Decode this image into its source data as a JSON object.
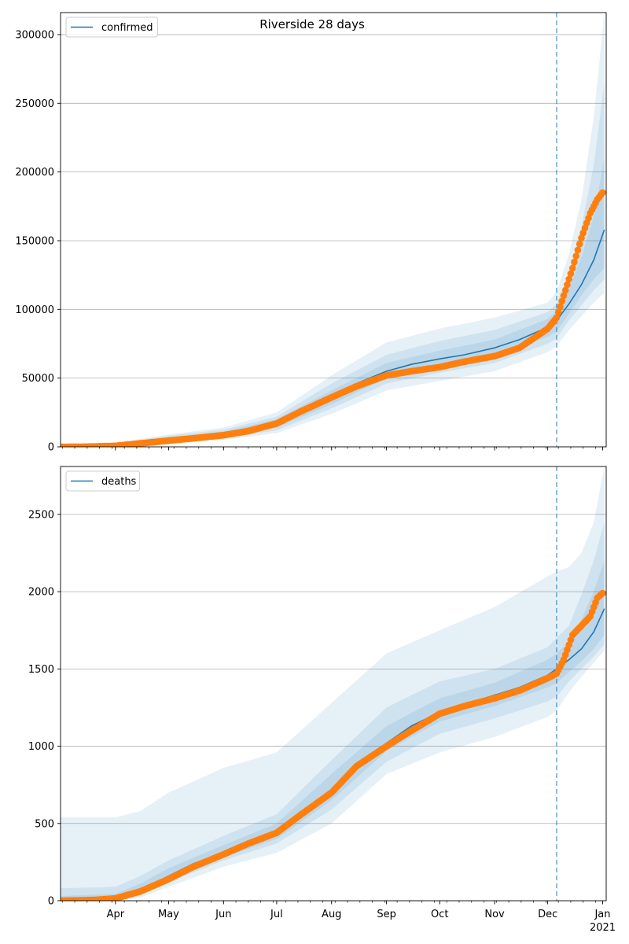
{
  "figure": {
    "title": "Riverside 28 days"
  },
  "chart_data": [
    {
      "type": "line",
      "title": "Riverside 28 days",
      "xlabel": "",
      "ylabel": "",
      "legend": "top-left",
      "grid": "y",
      "ylim": [
        0,
        316000
      ],
      "y_ticks": [
        0,
        50000,
        100000,
        150000,
        200000,
        250000,
        300000
      ],
      "y_tick_labels": [
        "0",
        "50000",
        "100000",
        "150000",
        "200000",
        "250000",
        "300000"
      ],
      "forecast_start": "2020-12-06",
      "model": {
        "name": "confirmed",
        "color": "#1f77b4",
        "points": [
          [
            "2020-03-01",
            0
          ],
          [
            "2020-03-20",
            300
          ],
          [
            "2020-04-01",
            1500
          ],
          [
            "2020-04-15",
            3500
          ],
          [
            "2020-05-01",
            5500
          ],
          [
            "2020-05-15",
            7000
          ],
          [
            "2020-06-01",
            9000
          ],
          [
            "2020-06-15",
            12000
          ],
          [
            "2020-07-01",
            17000
          ],
          [
            "2020-07-15",
            25000
          ],
          [
            "2020-08-01",
            36000
          ],
          [
            "2020-08-15",
            46000
          ],
          [
            "2020-09-01",
            55000
          ],
          [
            "2020-09-15",
            60000
          ],
          [
            "2020-10-01",
            64000
          ],
          [
            "2020-10-15",
            67000
          ],
          [
            "2020-11-01",
            72000
          ],
          [
            "2020-11-15",
            78000
          ],
          [
            "2020-12-01",
            87000
          ],
          [
            "2020-12-06",
            92000
          ],
          [
            "2020-12-13",
            104000
          ],
          [
            "2020-12-20",
            118000
          ],
          [
            "2020-12-27",
            136000
          ],
          [
            "2021-01-02",
            158000
          ]
        ],
        "bands": [
          {
            "opacity": 0.11,
            "points": [
              [
                "2020-03-01",
                0,
                0
              ],
              [
                "2020-04-01",
                0,
                3000
              ],
              [
                "2020-05-01",
                2500,
                9000
              ],
              [
                "2020-06-01",
                5000,
                14000
              ],
              [
                "2020-07-01",
                10000,
                25000
              ],
              [
                "2020-08-01",
                24000,
                52000
              ],
              [
                "2020-09-01",
                41000,
                76000
              ],
              [
                "2020-10-01",
                48000,
                86000
              ],
              [
                "2020-11-01",
                55000,
                94000
              ],
              [
                "2020-12-01",
                69000,
                105000
              ],
              [
                "2020-12-06",
                73000,
                113000
              ],
              [
                "2020-12-13",
                85000,
                140000
              ],
              [
                "2020-12-20",
                95000,
                180000
              ],
              [
                "2020-12-27",
                105000,
                240000
              ],
              [
                "2021-01-02",
                112000,
                316000
              ]
            ]
          },
          {
            "opacity": 0.11,
            "points": [
              [
                "2020-03-01",
                0,
                0
              ],
              [
                "2020-04-01",
                300,
                2500
              ],
              [
                "2020-05-01",
                3500,
                8000
              ],
              [
                "2020-06-01",
                6000,
                12500
              ],
              [
                "2020-07-01",
                12000,
                22000
              ],
              [
                "2020-08-01",
                28000,
                46000
              ],
              [
                "2020-09-01",
                46000,
                67000
              ],
              [
                "2020-10-01",
                54000,
                77000
              ],
              [
                "2020-11-01",
                61000,
                85000
              ],
              [
                "2020-12-01",
                75000,
                98000
              ],
              [
                "2020-12-06",
                79000,
                104000
              ],
              [
                "2020-12-13",
                92000,
                127000
              ],
              [
                "2020-12-20",
                103000,
                160000
              ],
              [
                "2020-12-27",
                114000,
                205000
              ],
              [
                "2021-01-02",
                122000,
                265000
              ]
            ]
          },
          {
            "opacity": 0.11,
            "points": [
              [
                "2020-03-01",
                0,
                0
              ],
              [
                "2020-04-01",
                700,
                2100
              ],
              [
                "2020-05-01",
                4500,
                7000
              ],
              [
                "2020-06-01",
                7200,
                11000
              ],
              [
                "2020-07-01",
                14000,
                20000
              ],
              [
                "2020-08-01",
                31000,
                41000
              ],
              [
                "2020-09-01",
                50000,
                61000
              ],
              [
                "2020-10-01",
                58000,
                70000
              ],
              [
                "2020-11-01",
                66000,
                78000
              ],
              [
                "2020-12-01",
                80000,
                93000
              ],
              [
                "2020-12-06",
                84000,
                99000
              ],
              [
                "2020-12-13",
                97000,
                115000
              ],
              [
                "2020-12-20",
                110000,
                138000
              ],
              [
                "2020-12-27",
                122000,
                168000
              ],
              [
                "2021-01-02",
                130000,
                210000
              ]
            ]
          }
        ]
      },
      "observed": {
        "color": "#ff7f0e",
        "points": [
          [
            "2020-03-01",
            0
          ],
          [
            "2020-03-15",
            100
          ],
          [
            "2020-04-01",
            700
          ],
          [
            "2020-04-15",
            2500
          ],
          [
            "2020-05-01",
            4500
          ],
          [
            "2020-05-15",
            6200
          ],
          [
            "2020-06-01",
            8500
          ],
          [
            "2020-06-15",
            11500
          ],
          [
            "2020-07-01",
            17000
          ],
          [
            "2020-07-15",
            26000
          ],
          [
            "2020-08-01",
            36000
          ],
          [
            "2020-08-15",
            44000
          ],
          [
            "2020-09-01",
            52000
          ],
          [
            "2020-09-15",
            55000
          ],
          [
            "2020-10-01",
            58000
          ],
          [
            "2020-10-15",
            62000
          ],
          [
            "2020-11-01",
            66000
          ],
          [
            "2020-11-15",
            72000
          ],
          [
            "2020-12-01",
            86000
          ],
          [
            "2020-12-06",
            94000
          ],
          [
            "2020-12-10",
            110000
          ],
          [
            "2020-12-15",
            130000
          ],
          [
            "2020-12-20",
            152000
          ],
          [
            "2020-12-25",
            170000
          ],
          [
            "2020-12-29",
            180000
          ],
          [
            "2021-01-01",
            185000
          ]
        ]
      }
    },
    {
      "type": "line",
      "title": "",
      "xlabel": "",
      "ylabel": "",
      "legend": "top-left",
      "grid": "y",
      "ylim": [
        0,
        2810
      ],
      "y_ticks": [
        0,
        500,
        1000,
        1500,
        2000,
        2500
      ],
      "y_tick_labels": [
        "0",
        "500",
        "1000",
        "1500",
        "2000",
        "2500"
      ],
      "forecast_start": "2020-12-06",
      "model": {
        "name": "deaths",
        "color": "#1f77b4",
        "points": [
          [
            "2020-03-01",
            0
          ],
          [
            "2020-04-01",
            15
          ],
          [
            "2020-04-15",
            70
          ],
          [
            "2020-05-01",
            160
          ],
          [
            "2020-05-15",
            240
          ],
          [
            "2020-06-01",
            310
          ],
          [
            "2020-06-15",
            370
          ],
          [
            "2020-07-01",
            440
          ],
          [
            "2020-07-15",
            550
          ],
          [
            "2020-08-01",
            720
          ],
          [
            "2020-08-15",
            880
          ],
          [
            "2020-09-01",
            1020
          ],
          [
            "2020-09-15",
            1130
          ],
          [
            "2020-10-01",
            1220
          ],
          [
            "2020-10-15",
            1270
          ],
          [
            "2020-11-01",
            1330
          ],
          [
            "2020-11-15",
            1380
          ],
          [
            "2020-12-01",
            1460
          ],
          [
            "2020-12-06",
            1500
          ],
          [
            "2020-12-13",
            1560
          ],
          [
            "2020-12-20",
            1630
          ],
          [
            "2020-12-27",
            1740
          ],
          [
            "2021-01-02",
            1890
          ]
        ],
        "bands": [
          {
            "opacity": 0.11,
            "points": [
              [
                "2020-03-01",
                0,
                540
              ],
              [
                "2020-04-01",
                0,
                540
              ],
              [
                "2020-04-15",
                20,
                580
              ],
              [
                "2020-05-01",
                90,
                700
              ],
              [
                "2020-06-01",
                220,
                860
              ],
              [
                "2020-07-01",
                310,
                960
              ],
              [
                "2020-08-01",
                500,
                1280
              ],
              [
                "2020-09-01",
                820,
                1600
              ],
              [
                "2020-10-01",
                960,
                1750
              ],
              [
                "2020-11-01",
                1060,
                1900
              ],
              [
                "2020-12-01",
                1190,
                2100
              ],
              [
                "2020-12-06",
                1230,
                2130
              ],
              [
                "2020-12-13",
                1350,
                2160
              ],
              [
                "2020-12-20",
                1450,
                2250
              ],
              [
                "2020-12-27",
                1540,
                2450
              ],
              [
                "2021-01-02",
                1620,
                2810
              ]
            ]
          },
          {
            "opacity": 0.11,
            "points": [
              [
                "2020-03-01",
                0,
                80
              ],
              [
                "2020-04-01",
                0,
                90
              ],
              [
                "2020-04-15",
                40,
                160
              ],
              [
                "2020-05-01",
                120,
                260
              ],
              [
                "2020-06-01",
                260,
                420
              ],
              [
                "2020-07-01",
                370,
                560
              ],
              [
                "2020-08-01",
                590,
                910
              ],
              [
                "2020-09-01",
                900,
                1250
              ],
              [
                "2020-10-01",
                1080,
                1420
              ],
              [
                "2020-11-01",
                1180,
                1500
              ],
              [
                "2020-12-01",
                1290,
                1640
              ],
              [
                "2020-12-06",
                1320,
                1700
              ],
              [
                "2020-12-13",
                1420,
                1780
              ],
              [
                "2020-12-20",
                1500,
                1980
              ],
              [
                "2020-12-27",
                1580,
                2200
              ],
              [
                "2021-01-02",
                1660,
                2450
              ]
            ]
          },
          {
            "opacity": 0.11,
            "points": [
              [
                "2020-03-01",
                0,
                30
              ],
              [
                "2020-04-01",
                5,
                45
              ],
              [
                "2020-04-15",
                55,
                110
              ],
              [
                "2020-05-01",
                140,
                210
              ],
              [
                "2020-06-01",
                280,
                360
              ],
              [
                "2020-07-01",
                400,
                500
              ],
              [
                "2020-08-01",
                650,
                820
              ],
              [
                "2020-09-01",
                970,
                1130
              ],
              [
                "2020-10-01",
                1160,
                1310
              ],
              [
                "2020-11-01",
                1260,
                1410
              ],
              [
                "2020-12-01",
                1380,
                1560
              ],
              [
                "2020-12-06",
                1410,
                1600
              ],
              [
                "2020-12-13",
                1480,
                1680
              ],
              [
                "2020-12-20",
                1550,
                1820
              ],
              [
                "2020-12-27",
                1630,
                2000
              ],
              [
                "2021-01-02",
                1720,
                2200
              ]
            ]
          }
        ]
      },
      "observed": {
        "color": "#ff7f0e",
        "points": [
          [
            "2020-03-01",
            0
          ],
          [
            "2020-03-20",
            5
          ],
          [
            "2020-04-01",
            15
          ],
          [
            "2020-04-15",
            60
          ],
          [
            "2020-05-01",
            140
          ],
          [
            "2020-05-15",
            220
          ],
          [
            "2020-06-01",
            300
          ],
          [
            "2020-06-15",
            370
          ],
          [
            "2020-07-01",
            440
          ],
          [
            "2020-07-15",
            560
          ],
          [
            "2020-08-01",
            700
          ],
          [
            "2020-08-15",
            870
          ],
          [
            "2020-09-01",
            1000
          ],
          [
            "2020-09-15",
            1100
          ],
          [
            "2020-10-01",
            1210
          ],
          [
            "2020-10-15",
            1260
          ],
          [
            "2020-11-01",
            1310
          ],
          [
            "2020-11-15",
            1360
          ],
          [
            "2020-12-01",
            1440
          ],
          [
            "2020-12-06",
            1470
          ],
          [
            "2020-12-10",
            1560
          ],
          [
            "2020-12-15",
            1720
          ],
          [
            "2020-12-20",
            1780
          ],
          [
            "2020-12-25",
            1840
          ],
          [
            "2020-12-29",
            1960
          ],
          [
            "2021-01-01",
            1990
          ]
        ]
      }
    }
  ],
  "x_axis": {
    "range": [
      "2020-03-01",
      "2021-01-03"
    ],
    "tick_labels": [
      {
        "date": "2020-04-01",
        "label": "Apr"
      },
      {
        "date": "2020-05-01",
        "label": "May"
      },
      {
        "date": "2020-06-01",
        "label": "Jun"
      },
      {
        "date": "2020-07-01",
        "label": "Jul"
      },
      {
        "date": "2020-08-01",
        "label": "Aug"
      },
      {
        "date": "2020-09-01",
        "label": "Sep"
      },
      {
        "date": "2020-10-01",
        "label": "Oct"
      },
      {
        "date": "2020-11-01",
        "label": "Nov"
      },
      {
        "date": "2020-12-01",
        "label": "Dec"
      },
      {
        "date": "2021-01-01",
        "label": "Jan"
      }
    ],
    "year_label": {
      "date": "2021-01-01",
      "label": "2021"
    }
  }
}
